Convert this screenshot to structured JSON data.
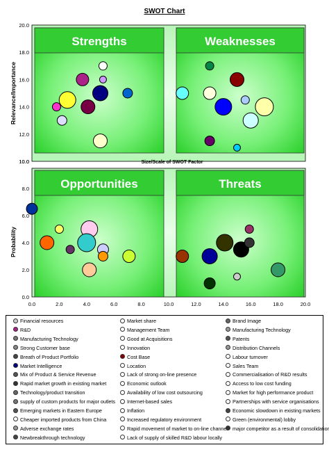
{
  "chart_data": {
    "type": "scatter",
    "subtype": "bubble",
    "title": "SWOT Chart",
    "top_panel": {
      "ylabel": "Relevance/Importance",
      "ylim": [
        10.0,
        20.0
      ],
      "yticks": [
        "20.0",
        "18.0",
        "16.0",
        "14.0",
        "12.0",
        "10.0"
      ],
      "quadrant_labels": [
        "Strengths",
        "Weaknesses"
      ],
      "points": [
        {
          "x": 3.7,
          "y": 16.0,
          "r": 9,
          "color": "#aa2288"
        },
        {
          "x": 5.2,
          "y": 17.0,
          "r": 6,
          "color": "#ffffff"
        },
        {
          "x": 5.2,
          "y": 16.0,
          "r": 5,
          "color": "#cc99ff"
        },
        {
          "x": 1.8,
          "y": 14.0,
          "r": 6,
          "color": "#ff33cc"
        },
        {
          "x": 2.6,
          "y": 14.5,
          "r": 12,
          "color": "#ffff33"
        },
        {
          "x": 4.1,
          "y": 14.0,
          "r": 10,
          "color": "#770044"
        },
        {
          "x": 5.0,
          "y": 15.0,
          "r": 11,
          "color": "#000080"
        },
        {
          "x": 7.0,
          "y": 15.0,
          "r": 7,
          "color": "#0066cc"
        },
        {
          "x": 2.2,
          "y": 13.0,
          "r": 7,
          "color": "#ddddff"
        },
        {
          "x": 5.0,
          "y": 11.5,
          "r": 10,
          "color": "#ffffcc"
        },
        {
          "x": 13.0,
          "y": 17.0,
          "r": 6,
          "color": "#008844"
        },
        {
          "x": 11.0,
          "y": 15.0,
          "r": 9,
          "color": "#66ffff"
        },
        {
          "x": 13.0,
          "y": 15.0,
          "r": 9,
          "color": "#ffffdd"
        },
        {
          "x": 15.0,
          "y": 16.0,
          "r": 10,
          "color": "#880000"
        },
        {
          "x": 14.0,
          "y": 14.0,
          "r": 12,
          "color": "#0000ff"
        },
        {
          "x": 15.6,
          "y": 14.5,
          "r": 6,
          "color": "#aaccff"
        },
        {
          "x": 17.0,
          "y": 14.0,
          "r": 13,
          "color": "#ffffaa"
        },
        {
          "x": 16.0,
          "y": 13.0,
          "r": 11,
          "color": "#ccffff"
        },
        {
          "x": 13.0,
          "y": 11.5,
          "r": 7,
          "color": "#660066"
        },
        {
          "x": 15.0,
          "y": 11.0,
          "r": 5,
          "color": "#00ccff"
        }
      ]
    },
    "middle_label": "Size/Scale of SWOT Factor",
    "bottom_panel": {
      "ylabel": "Probability",
      "ylim": [
        0.0,
        10.0
      ],
      "xlim": [
        0.0,
        20.0
      ],
      "yticks": [
        "10.0",
        "8.0",
        "6.0",
        "4.0",
        "2.0",
        "0.0"
      ],
      "xticks": [
        "0.0",
        "2.0",
        "4.0",
        "6.0",
        "8.0",
        "10.0",
        "12.0",
        "14.0",
        "16.0",
        "18.0",
        "20.0"
      ],
      "quadrant_labels": [
        "Opportunities",
        "Threats"
      ],
      "points": [
        {
          "x": 0.0,
          "y": 6.5,
          "r": 8,
          "color": "#003399"
        },
        {
          "x": 1.1,
          "y": 4.0,
          "r": 10,
          "color": "#ff6600"
        },
        {
          "x": 2.0,
          "y": 5.0,
          "r": 6,
          "color": "#ffff66"
        },
        {
          "x": 2.8,
          "y": 3.5,
          "r": 6,
          "color": "#663366"
        },
        {
          "x": 4.2,
          "y": 5.0,
          "r": 12,
          "color": "#ffccee"
        },
        {
          "x": 4.0,
          "y": 4.0,
          "r": 13,
          "color": "#33cccc"
        },
        {
          "x": 5.2,
          "y": 3.5,
          "r": 8,
          "color": "#ccccff"
        },
        {
          "x": 5.2,
          "y": 3.0,
          "r": 7,
          "color": "#ff9900"
        },
        {
          "x": 4.2,
          "y": 2.0,
          "r": 10,
          "color": "#ffcc99"
        },
        {
          "x": 7.1,
          "y": 3.0,
          "r": 9,
          "color": "#ccff33"
        },
        {
          "x": 11.0,
          "y": 3.0,
          "r": 9,
          "color": "#993300"
        },
        {
          "x": 13.0,
          "y": 3.0,
          "r": 11,
          "color": "#000099"
        },
        {
          "x": 13.0,
          "y": 1.0,
          "r": 8,
          "color": "#003300"
        },
        {
          "x": 14.1,
          "y": 4.0,
          "r": 12,
          "color": "#333300"
        },
        {
          "x": 15.3,
          "y": 3.5,
          "r": 11,
          "color": "#000000"
        },
        {
          "x": 15.9,
          "y": 4.0,
          "r": 7,
          "color": "#333333"
        },
        {
          "x": 15.9,
          "y": 5.0,
          "r": 6,
          "color": "#993366"
        },
        {
          "x": 15.0,
          "y": 1.5,
          "r": 5,
          "color": "#cccccc"
        },
        {
          "x": 18.0,
          "y": 2.0,
          "r": 10,
          "color": "#339966"
        }
      ]
    },
    "legend": [
      {
        "label": "Financial resources",
        "color": "#cccccc"
      },
      {
        "label": "Market share",
        "color": "#ffffff"
      },
      {
        "label": "Brand Image",
        "color": "#666666"
      },
      {
        "label": "R&D",
        "color": "#aa2288"
      },
      {
        "label": "Management Team",
        "color": "#ffffff"
      },
      {
        "label": "Manufacturing Technology",
        "color": "#999999"
      },
      {
        "label": "Manufacturing Technology",
        "color": "#777777"
      },
      {
        "label": "Good at Acquisitions",
        "color": "#ffffff"
      },
      {
        "label": "Patents",
        "color": "#555555"
      },
      {
        "label": "Strong Customer base",
        "color": "#888888"
      },
      {
        "label": "Innovation",
        "color": "#ffffff"
      },
      {
        "label": "Distribution Channels",
        "color": "#999999"
      },
      {
        "label": "Breath of Product Portfolio",
        "color": "#444444"
      },
      {
        "label": "Cost Base",
        "color": "#880000"
      },
      {
        "label": "Labour turnover",
        "color": "#ffffff"
      },
      {
        "label": "Market Intelligence",
        "color": "#000080"
      },
      {
        "label": "Location",
        "color": "#ffffff"
      },
      {
        "label": "Sales Team",
        "color": "#ffffff"
      },
      {
        "label": "Mix of Product & Service Revenue",
        "color": "#555555"
      },
      {
        "label": "Lack of strong on-line presence",
        "color": "#ffffff"
      },
      {
        "label": "Commercialisation of R&D results",
        "color": "#ffffff"
      },
      {
        "label": "Rapid market growth in existing market",
        "color": "#333333"
      },
      {
        "label": "Economic outlook",
        "color": "#ffffff"
      },
      {
        "label": "Access to low cost funding",
        "color": "#ffffff"
      },
      {
        "label": "Technology/product transition",
        "color": "#666666"
      },
      {
        "label": "Availability of low cost outsourcing",
        "color": "#ffffff"
      },
      {
        "label": "Market for high performance product",
        "color": "#ffffff"
      },
      {
        "label": "supply of custom products for major outlets",
        "color": "#777777"
      },
      {
        "label": "Internet-based sales",
        "color": "#ffffff"
      },
      {
        "label": "Partnerships with service organisations",
        "color": "#ffffff"
      },
      {
        "label": "Emerging markets in Eastern Europe",
        "color": "#555555"
      },
      {
        "label": "Inflation",
        "color": "#ffffff"
      },
      {
        "label": "Economic slowdown in existing markets",
        "color": "#444444"
      },
      {
        "label": "Cheaper imported products from China",
        "color": "#ffffff"
      },
      {
        "label": "Increased regulatory environment",
        "color": "#ffffff"
      },
      {
        "label": "Green (environmental) lobby",
        "color": "#ffffff"
      },
      {
        "label": "Adverse exchange rates",
        "color": "#999999"
      },
      {
        "label": "Rapid movement of market to on-line channel",
        "color": "#ffffff"
      },
      {
        "label": "major competitor as a result of consolidation",
        "color": "#333333"
      },
      {
        "label": "Newbreakthrough technology",
        "color": "#444444"
      },
      {
        "label": "Lack of supply of skilled R&D labour locally",
        "color": "#ffffff"
      }
    ]
  }
}
